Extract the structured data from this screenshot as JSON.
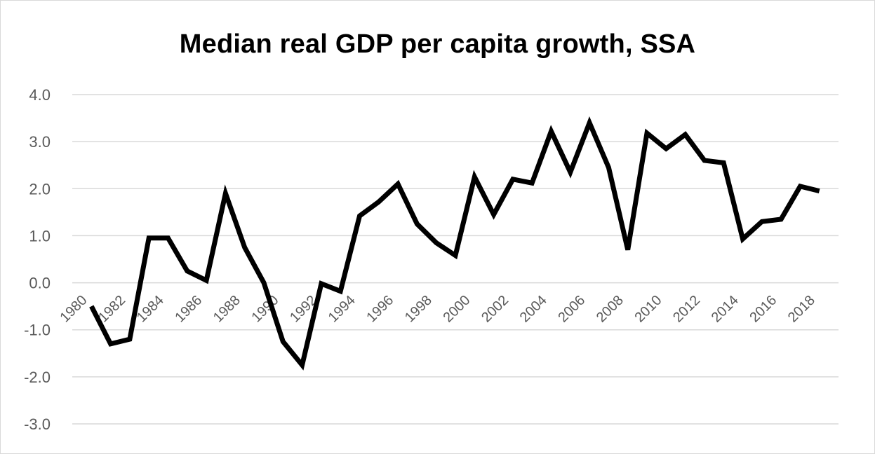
{
  "chart_data": {
    "type": "line",
    "title": "Median real GDP per capita growth, SSA",
    "xlabel": "",
    "ylabel": "",
    "ylim": [
      -3.0,
      4.0
    ],
    "y_ticks": [
      "4.0",
      "3.0",
      "2.0",
      "1.0",
      "0.0",
      "-1.0",
      "-2.0",
      "-3.0"
    ],
    "x_tick_labels": [
      "1980",
      "1982",
      "1984",
      "1986",
      "1988",
      "1990",
      "1992",
      "1994",
      "1996",
      "1998",
      "2000",
      "2002",
      "2004",
      "2006",
      "2008",
      "2010",
      "2012",
      "2014",
      "2016",
      "2018"
    ],
    "grid": true,
    "legend": "none",
    "line_color": "#000000",
    "grid_color": "#d9d9d9",
    "axis_text_color": "#595959",
    "x": [
      1981,
      1982,
      1983,
      1984,
      1985,
      1986,
      1987,
      1988,
      1989,
      1990,
      1991,
      1992,
      1993,
      1994,
      1995,
      1996,
      1997,
      1998,
      1999,
      2000,
      2001,
      2002,
      2003,
      2004,
      2005,
      2006,
      2007,
      2008,
      2009,
      2010,
      2011,
      2012,
      2013,
      2014,
      2015,
      2016,
      2017,
      2018,
      2019
    ],
    "values": [
      -0.5,
      -1.3,
      -1.2,
      0.95,
      0.95,
      0.25,
      0.05,
      1.9,
      0.75,
      0.0,
      -1.25,
      -1.75,
      -0.02,
      -0.18,
      1.42,
      1.72,
      2.1,
      1.25,
      0.85,
      0.58,
      2.25,
      1.45,
      2.2,
      2.12,
      3.22,
      2.35,
      3.4,
      2.45,
      0.7,
      3.18,
      2.85,
      3.15,
      2.6,
      2.55,
      0.93,
      1.3,
      1.35,
      2.05,
      1.95
    ]
  }
}
